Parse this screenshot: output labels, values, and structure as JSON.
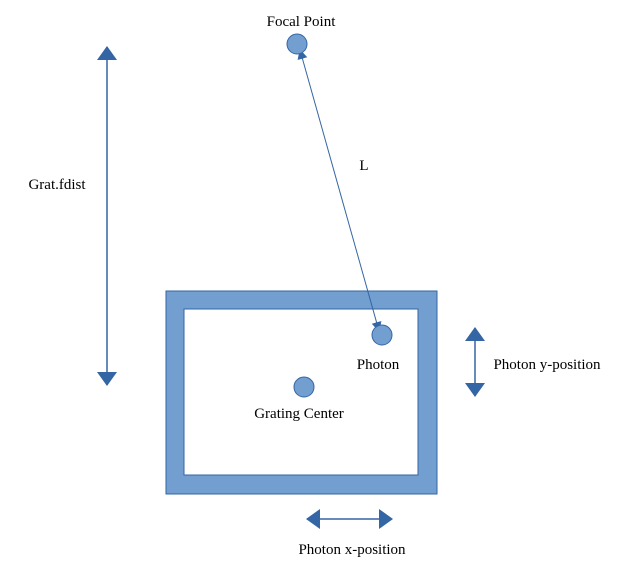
{
  "labels": {
    "focal_point": "Focal Point",
    "l": "L",
    "grat_fdist": "Grat.fdist",
    "photon": "Photon",
    "grating_center": "Grating Center",
    "photon_y_position": "Photon y-position",
    "photon_x_position": "Photon x-position"
  },
  "colors": {
    "fill": "#729fcf",
    "stroke": "#3465a4",
    "arrow": "#3465a4",
    "text": "#000000",
    "background": "#ffffff"
  }
}
